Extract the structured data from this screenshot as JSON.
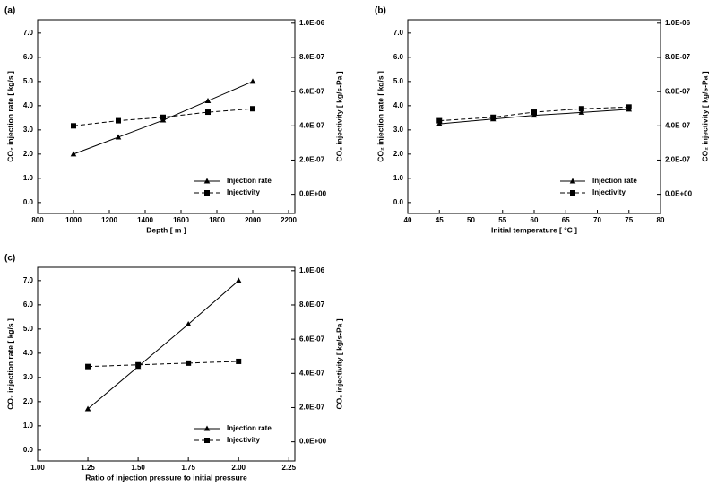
{
  "chart_data": [
    {
      "type": "line",
      "panel": "(a)",
      "xlabel": "Depth [ m ]",
      "ylabel": "CO₂ injection rate [ kg/s ]",
      "y2label": "CO₂ injectivity [ kg/s-Pa ]",
      "x": [
        1000,
        1250,
        1500,
        1750,
        2000
      ],
      "series": [
        {
          "name": "Injection rate",
          "color": "#000000",
          "marker": "triangle",
          "linestyle": "solid",
          "values": [
            2.0,
            2.7,
            3.4,
            4.2,
            5.0
          ]
        },
        {
          "name": "Injectivity",
          "color": "#000000",
          "marker": "square",
          "linestyle": "dashed",
          "axis": "y2",
          "values": [
            4e-07,
            4.3e-07,
            4.5e-07,
            4.8e-07,
            5e-07
          ]
        }
      ],
      "xlim": [
        800,
        2235
      ],
      "ylim": [
        -0.45,
        7.55
      ],
      "y2lim": [
        -1.12e-07,
        1.02e-06
      ],
      "xticks": [
        800,
        1000,
        1200,
        1400,
        1600,
        1800,
        2000,
        2200
      ],
      "yticks": [
        {
          "value": 0,
          "label": "0.0"
        },
        {
          "value": 1,
          "label": "1.0"
        },
        {
          "value": 2,
          "label": "2.0"
        },
        {
          "value": 3,
          "label": "3.0"
        },
        {
          "value": 4,
          "label": "4.0"
        },
        {
          "value": 5,
          "label": "5.0"
        },
        {
          "value": 6,
          "label": "6.0"
        },
        {
          "value": 7,
          "label": "7.0"
        }
      ],
      "y2ticks": [
        {
          "value": 0,
          "label": "0.0E+00"
        },
        {
          "value": 2e-07,
          "label": "2.0E-07"
        },
        {
          "value": 4e-07,
          "label": "4.0E-07"
        },
        {
          "value": 6e-07,
          "label": "6.0E-07"
        },
        {
          "value": 8e-07,
          "label": "8.0E-07"
        },
        {
          "value": 1e-06,
          "label": "1.0E-06"
        }
      ],
      "legend": "lower right"
    },
    {
      "type": "line",
      "panel": "(b)",
      "xlabel": "Initial temperature [ °C ]",
      "ylabel": "CO₂ injection rate [ kg/s ]",
      "y2label": "CO₂ injectivity [ kg/s-Pa ]",
      "x": [
        45,
        53.5,
        60,
        67.5,
        75
      ],
      "series": [
        {
          "name": "Injection rate",
          "color": "#000000",
          "marker": "triangle",
          "linestyle": "solid",
          "values": [
            3.25,
            3.45,
            3.6,
            3.72,
            3.85
          ]
        },
        {
          "name": "Injectivity",
          "color": "#000000",
          "marker": "square",
          "linestyle": "dashed",
          "axis": "y2",
          "values": [
            4.3e-07,
            4.5e-07,
            4.8e-07,
            5e-07,
            5.1e-07
          ]
        }
      ],
      "xlim": [
        40,
        80
      ],
      "ylim": [
        -0.45,
        7.55
      ],
      "y2lim": [
        -1.12e-07,
        1.02e-06
      ],
      "xticks": [
        40,
        45,
        50,
        55,
        60,
        65,
        70,
        75,
        80
      ],
      "yticks": [
        {
          "value": 0,
          "label": "0.0"
        },
        {
          "value": 1,
          "label": "1.0"
        },
        {
          "value": 2,
          "label": "2.0"
        },
        {
          "value": 3,
          "label": "3.0"
        },
        {
          "value": 4,
          "label": "4.0"
        },
        {
          "value": 5,
          "label": "5.0"
        },
        {
          "value": 6,
          "label": "6.0"
        },
        {
          "value": 7,
          "label": "7.0"
        }
      ],
      "y2ticks": [
        {
          "value": 0,
          "label": "0.0E+00"
        },
        {
          "value": 2e-07,
          "label": "2.0E-07"
        },
        {
          "value": 4e-07,
          "label": "4.0E-07"
        },
        {
          "value": 6e-07,
          "label": "6.0E-07"
        },
        {
          "value": 8e-07,
          "label": "8.0E-07"
        },
        {
          "value": 1e-06,
          "label": "1.0E-06"
        }
      ],
      "legend": "lower right"
    },
    {
      "type": "line",
      "panel": "(c)",
      "xlabel": "Ratio of injection pressure to initial pressure",
      "ylabel": "CO₂ injection rate [ kg/s ]",
      "y2label": "CO₂ injectivity [ kg/s-Pa ]",
      "x": [
        1.25,
        1.5,
        1.75,
        2.0
      ],
      "series": [
        {
          "name": "Injection rate",
          "color": "#000000",
          "marker": "triangle",
          "linestyle": "solid",
          "values": [
            1.7,
            3.45,
            5.2,
            7.0
          ]
        },
        {
          "name": "Injectivity",
          "color": "#000000",
          "marker": "square",
          "linestyle": "dashed",
          "axis": "y2",
          "values": [
            4.4e-07,
            4.5e-07,
            4.6e-07,
            4.7e-07
          ]
        }
      ],
      "xlim": [
        1.0,
        2.28
      ],
      "ylim": [
        -0.45,
        7.55
      ],
      "y2lim": [
        -1.12e-07,
        1.02e-06
      ],
      "xticks": [
        {
          "value": 1.0,
          "label": "1.00"
        },
        1.25,
        {
          "value": 1.5,
          "label": "1.50"
        },
        1.75,
        {
          "value": 2.0,
          "label": "2.00"
        },
        2.25
      ],
      "yticks": [
        {
          "value": 0,
          "label": "0.0"
        },
        {
          "value": 1,
          "label": "1.0"
        },
        {
          "value": 2,
          "label": "2.0"
        },
        {
          "value": 3,
          "label": "3.0"
        },
        {
          "value": 4,
          "label": "4.0"
        },
        {
          "value": 5,
          "label": "5.0"
        },
        {
          "value": 6,
          "label": "6.0"
        },
        {
          "value": 7,
          "label": "7.0"
        }
      ],
      "y2ticks": [
        {
          "value": 0,
          "label": "0.0E+00"
        },
        {
          "value": 2e-07,
          "label": "2.0E-07"
        },
        {
          "value": 4e-07,
          "label": "4.0E-07"
        },
        {
          "value": 6e-07,
          "label": "6.0E-07"
        },
        {
          "value": 8e-07,
          "label": "8.0E-07"
        },
        {
          "value": 1e-06,
          "label": "1.0E-06"
        }
      ],
      "legend": "lower right"
    }
  ]
}
